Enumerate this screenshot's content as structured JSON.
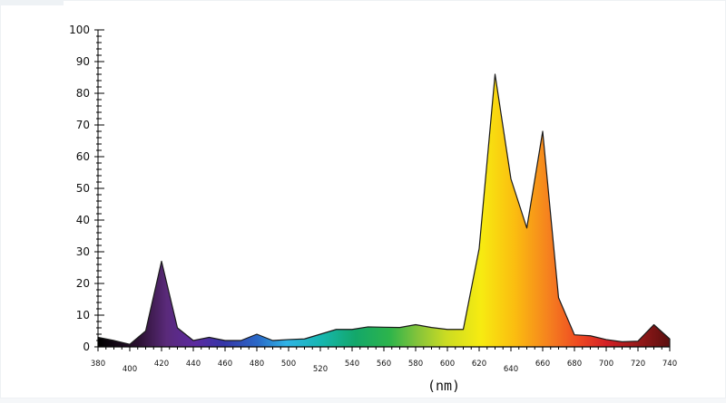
{
  "chart_data": {
    "type": "area",
    "title": "",
    "xlabel": "(nm)",
    "ylabel": "",
    "ylim": [
      0,
      100
    ],
    "xlim": [
      380,
      740
    ],
    "yticks": [
      0,
      10,
      20,
      30,
      40,
      50,
      60,
      70,
      80,
      90,
      100
    ],
    "xticks": [
      380,
      400,
      420,
      440,
      460,
      480,
      500,
      520,
      540,
      560,
      580,
      600,
      620,
      640,
      660,
      680,
      700,
      720,
      740
    ],
    "grid": false,
    "fill": "visible-spectrum-gradient",
    "series": [
      {
        "x": [
          380,
          390,
          400,
          410,
          420,
          430,
          440,
          450,
          460,
          470,
          480,
          490,
          500,
          510,
          520,
          530,
          540,
          550,
          560,
          570,
          580,
          590,
          600,
          610,
          620,
          630,
          640,
          650,
          660,
          670,
          680,
          690,
          700,
          710,
          720,
          730,
          740
        ],
        "values": [
          3,
          2,
          0.8,
          5,
          27,
          6,
          2,
          3,
          2,
          2,
          4,
          2,
          2.3,
          2.5,
          4,
          5.5,
          5.5,
          6.3,
          6.2,
          6.1,
          7,
          6.1,
          5.5,
          5.5,
          31,
          86,
          53,
          37.5,
          68,
          15.5,
          3.8,
          3.5,
          2.3,
          1.6,
          1.8,
          7,
          2.5
        ]
      }
    ]
  }
}
